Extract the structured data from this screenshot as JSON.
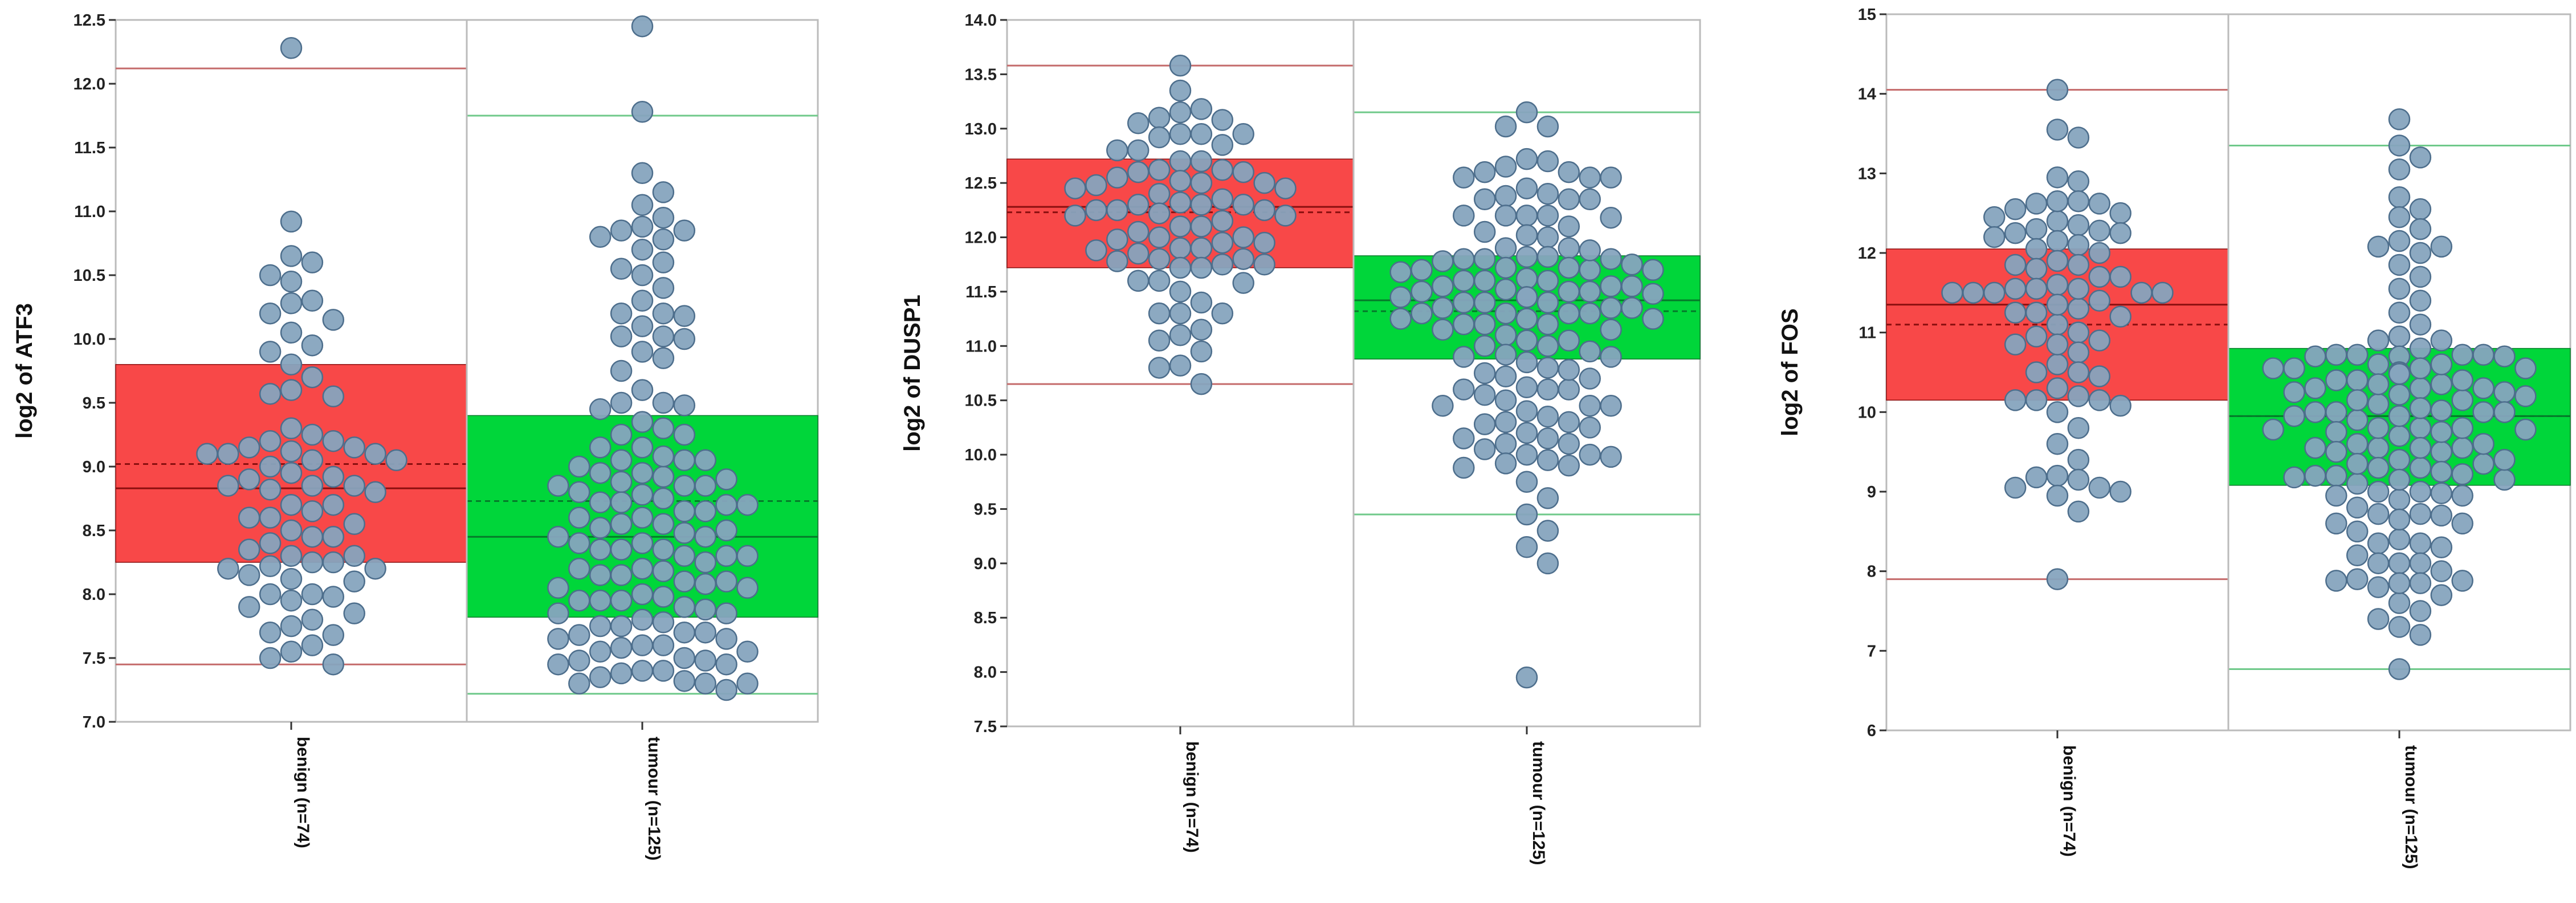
{
  "colors": {
    "benign": "#f84848",
    "tumour": "#00d63a",
    "benign_line": "#8a0f0f",
    "tumour_line": "#057a2a",
    "point": "#86a4be",
    "point_edge": "#4d6e8c",
    "frame": "#bbbbbb"
  },
  "chart_data": [
    {
      "type": "box-strip",
      "ylabel": "log2 of ATF3",
      "ylim": [
        7.0,
        12.5
      ],
      "yticks": [
        "7.0",
        "7.5",
        "8.0",
        "8.5",
        "9.0",
        "9.5",
        "10.0",
        "10.5",
        "11.0",
        "11.5",
        "12.0",
        "12.5"
      ],
      "categories": [
        "benign (n=74)",
        "tumour (n=125)"
      ],
      "groups": [
        {
          "name": "benign (n=74)",
          "box": {
            "q1": 8.25,
            "median": 8.83,
            "mean": 9.02,
            "q3": 9.8,
            "whisker_low": 7.45,
            "whisker_high": 12.12
          },
          "points": [
            12.28,
            10.92,
            10.65,
            10.6,
            10.45,
            10.3,
            10.2,
            10.05,
            9.95,
            9.9,
            9.8,
            9.7,
            9.6,
            9.55,
            9.3,
            9.2,
            9.15,
            9.1,
            9.05,
            9.0,
            8.9,
            8.85,
            8.8,
            8.7,
            8.6,
            8.5,
            8.45,
            8.4,
            8.3,
            8.25,
            8.2,
            8.15,
            8.1,
            8.0,
            7.95,
            7.9,
            7.8,
            7.7,
            7.6,
            7.5,
            7.45,
            10.5,
            10.28,
            10.15,
            9.57,
            9.2,
            9.1,
            9.05,
            8.92,
            8.85,
            8.7,
            8.6,
            8.55,
            8.45,
            8.3,
            8.22,
            8.0,
            7.85,
            7.68,
            9.15,
            9.12,
            9.1,
            8.85,
            8.82,
            8.25,
            8.2,
            9.25,
            8.95,
            8.65,
            8.35,
            8.12,
            7.98,
            7.75,
            7.55
          ]
        },
        {
          "name": "tumour (n=125)",
          "box": {
            "q1": 7.82,
            "median": 8.45,
            "mean": 8.73,
            "q3": 9.4,
            "whisker_low": 7.22,
            "whisker_high": 11.75
          },
          "points": [
            12.45,
            11.78,
            11.3,
            11.15,
            11.05,
            10.95,
            10.85,
            10.7,
            10.5,
            10.4,
            10.3,
            10.2,
            10.1,
            10.0,
            9.9,
            9.85,
            9.75,
            9.6,
            9.5,
            9.45,
            9.35,
            9.25,
            9.15,
            9.05,
            9.0,
            8.95,
            8.9,
            8.85,
            8.8,
            8.75,
            8.7,
            8.65,
            8.6,
            8.55,
            8.5,
            8.45,
            8.4,
            8.35,
            8.3,
            8.25,
            8.2,
            8.15,
            8.1,
            8.05,
            8.0,
            7.95,
            7.9,
            7.85,
            7.8,
            7.75,
            7.7,
            7.65,
            7.6,
            7.55,
            7.5,
            7.45,
            7.4,
            7.35,
            7.3,
            7.25,
            10.88,
            10.78,
            10.6,
            10.2,
            10.02,
            9.5,
            9.3,
            9.15,
            9.05,
            8.92,
            8.85,
            8.78,
            8.7,
            8.65,
            8.55,
            8.48,
            8.4,
            8.35,
            8.3,
            8.2,
            8.1,
            8.05,
            7.95,
            7.85,
            7.75,
            7.65,
            7.55,
            7.45,
            7.38,
            7.32,
            10.85,
            10.8,
            10.55,
            10.18,
            10.02,
            9.48,
            9.25,
            9.08,
            8.95,
            8.88,
            8.72,
            8.6,
            8.52,
            8.45,
            8.3,
            8.18,
            8.08,
            7.98,
            7.88,
            7.78,
            7.68,
            7.58,
            7.48,
            7.4,
            7.3,
            9.05,
            8.85,
            8.72,
            8.35,
            8.15,
            7.95,
            7.7,
            7.6,
            7.48,
            7.3
          ]
        }
      ]
    },
    {
      "type": "box-strip",
      "ylabel": "log2 of DUSP1",
      "ylim": [
        7.5,
        14.0
      ],
      "yticks": [
        "7.5",
        "8.0",
        "8.5",
        "9.0",
        "9.5",
        "10.0",
        "10.5",
        "11.0",
        "11.5",
        "12.0",
        "12.5",
        "13.0",
        "13.5",
        "14.0"
      ],
      "categories": [
        "benign (n=74)",
        "tumour (n=125)"
      ],
      "groups": [
        {
          "name": "benign (n=74)",
          "box": {
            "q1": 11.72,
            "median": 12.28,
            "mean": 12.23,
            "q3": 12.72,
            "whisker_low": 10.65,
            "whisker_high": 13.58
          },
          "points": [
            13.58,
            13.35,
            13.1,
            12.95,
            12.85,
            12.8,
            12.7,
            12.6,
            12.5,
            12.45,
            12.4,
            12.3,
            12.25,
            12.2,
            12.1,
            12.0,
            11.95,
            11.9,
            11.8,
            11.75,
            11.6,
            11.5,
            11.4,
            11.3,
            11.1,
            10.95,
            10.65,
            13.18,
            13.08,
            12.95,
            12.8,
            12.6,
            12.45,
            12.3,
            12.2,
            12.05,
            11.9,
            11.75,
            11.6,
            11.3,
            11.15,
            10.82,
            13.15,
            13.05,
            12.95,
            12.62,
            12.5,
            12.32,
            12.25,
            12.1,
            12.0,
            11.85,
            11.72,
            11.58,
            11.3,
            11.05,
            10.8,
            12.92,
            12.62,
            12.52,
            12.35,
            12.3,
            11.98,
            11.78,
            11.72,
            12.7,
            12.55,
            12.25,
            12.15,
            11.95,
            11.8,
            12.48,
            12.22,
            11.88
          ]
        },
        {
          "name": "tumour (n=125)",
          "box": {
            "q1": 10.88,
            "median": 11.42,
            "mean": 11.32,
            "q3": 11.83,
            "whisker_low": 9.45,
            "whisker_high": 13.15
          },
          "points": [
            13.15,
            12.65,
            12.55,
            12.45,
            12.35,
            12.2,
            12.1,
            12.0,
            11.9,
            11.8,
            11.7,
            11.6,
            11.5,
            11.45,
            11.4,
            11.35,
            11.3,
            11.25,
            11.2,
            11.1,
            11.0,
            10.9,
            10.8,
            10.7,
            10.6,
            10.5,
            10.45,
            10.4,
            10.35,
            10.3,
            10.25,
            10.2,
            10.15,
            10.1,
            10.05,
            10.0,
            9.9,
            9.75,
            9.6,
            9.45,
            9.3,
            9.15,
            9.0,
            7.95,
            13.02,
            12.72,
            12.55,
            12.38,
            12.2,
            12.05,
            11.9,
            11.78,
            11.62,
            11.52,
            11.4,
            11.3,
            11.2,
            11.05,
            10.9,
            10.75,
            10.6,
            10.45,
            10.3,
            10.15,
            9.98,
            9.92,
            13.02,
            12.7,
            12.55,
            12.35,
            12.18,
            12.02,
            11.88,
            11.72,
            11.6,
            11.48,
            11.35,
            11.25,
            11.15,
            11.05,
            10.92,
            10.78,
            10.62,
            10.45,
            10.28,
            10.1,
            9.95,
            9.88,
            12.6,
            12.4,
            12.2,
            11.82,
            11.7,
            11.55,
            11.45,
            11.3,
            11.2,
            11.0,
            10.85,
            10.6,
            10.0,
            12.6,
            12.35,
            12.2,
            11.82,
            11.68,
            11.5,
            11.4,
            11.25,
            11.15,
            10.95,
            10.72,
            10.55,
            11.8,
            11.72,
            11.55,
            11.45,
            11.3,
            11.8,
            11.7,
            11.55,
            11.45,
            11.35,
            11.75,
            11.6,
            11.5
          ]
        }
      ]
    },
    {
      "type": "box-strip",
      "ylabel": "log2 of FOS",
      "ylim": [
        6,
        15
      ],
      "yticks": [
        "6",
        "7",
        "8",
        "9",
        "10",
        "11",
        "12",
        "13",
        "14",
        "15"
      ],
      "categories": [
        "benign (n=74)",
        "tumour (n=125)"
      ],
      "groups": [
        {
          "name": "benign (n=74)",
          "box": {
            "q1": 10.15,
            "median": 11.35,
            "mean": 11.1,
            "q3": 12.05,
            "whisker_low": 7.9,
            "whisker_high": 14.05
          },
          "points": [
            14.05,
            13.55,
            13.45,
            12.55,
            12.5,
            12.45,
            12.4,
            12.35,
            12.3,
            12.25,
            12.2,
            12.15,
            12.1,
            12.05,
            12.0,
            11.9,
            11.8,
            11.7,
            11.6,
            11.5,
            11.4,
            11.3,
            11.2,
            11.1,
            11.0,
            10.9,
            10.75,
            10.6,
            10.45,
            10.3,
            10.15,
            10.0,
            9.8,
            9.6,
            9.4,
            9.2,
            9.0,
            8.95,
            8.75,
            7.9,
            12.9,
            12.65,
            12.62,
            11.85,
            11.5,
            11.25,
            10.85,
            10.5,
            10.15,
            9.15,
            9.05,
            12.95,
            12.65,
            12.62,
            11.85,
            11.5,
            11.25,
            10.85,
            10.5,
            10.15,
            9.18,
            9.05,
            11.55,
            11.5,
            10.2,
            10.08,
            10.95,
            12.25,
            11.5,
            12.28,
            11.55,
            11.55,
            11.7,
            11.35
          ]
        },
        {
          "name": "tumour (n=125)",
          "box": {
            "q1": 9.08,
            "median": 9.95,
            "mean": 9.95,
            "q3": 10.8,
            "whisker_low": 6.77,
            "whisker_high": 13.35
          },
          "points": [
            13.68,
            13.35,
            13.2,
            13.05,
            12.7,
            12.55,
            12.45,
            12.3,
            12.15,
            12.0,
            11.85,
            11.7,
            11.55,
            11.4,
            11.25,
            11.1,
            10.95,
            10.8,
            10.7,
            10.6,
            10.5,
            10.4,
            10.3,
            10.2,
            10.1,
            10.0,
            9.9,
            9.8,
            9.7,
            9.6,
            9.5,
            9.4,
            9.3,
            9.2,
            9.1,
            9.0,
            8.9,
            8.8,
            8.7,
            8.6,
            8.5,
            8.4,
            8.3,
            8.2,
            8.1,
            8.0,
            7.9,
            7.8,
            7.7,
            7.6,
            7.5,
            7.4,
            7.3,
            7.2,
            6.77,
            12.08,
            10.9,
            10.72,
            10.55,
            10.35,
            10.15,
            9.95,
            9.75,
            9.55,
            9.35,
            9.15,
            8.95,
            8.72,
            8.35,
            8.1,
            7.88,
            7.85,
            12.08,
            10.9,
            10.72,
            10.55,
            10.35,
            10.15,
            9.95,
            9.75,
            9.55,
            9.35,
            9.15,
            8.95,
            8.72,
            8.35,
            8.1,
            7.88,
            7.85,
            10.7,
            10.55,
            10.4,
            10.25,
            10.0,
            9.8,
            9.55,
            9.25,
            9.0,
            8.65,
            10.72,
            10.55,
            10.4,
            10.22,
            10.0,
            9.78,
            9.5,
            9.22,
            8.98,
            8.6,
            10.7,
            10.5,
            10.3,
            10.05,
            9.8,
            9.6,
            9.4,
            9.2,
            10.72,
            10.48,
            10.25,
            10.02,
            9.78,
            9.55,
            9.3,
            9.18,
            10.6,
            10.3,
            10.0
          ]
        }
      ]
    }
  ]
}
